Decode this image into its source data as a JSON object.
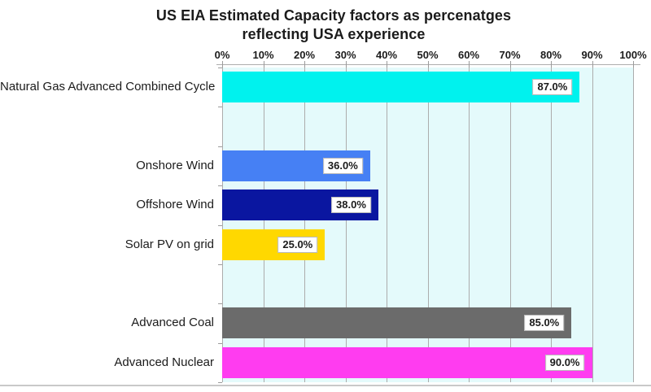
{
  "header": {
    "title_line1": "US EIA Estimated Capacity factors as percenatges",
    "title_line2": "reflecting USA experience"
  },
  "chart_data": {
    "type": "bar",
    "orientation": "horizontal",
    "title": "US EIA Estimated Capacity factors as percenatges reflecting USA experience",
    "xlabel": "",
    "ylabel": "",
    "x_axis": {
      "position": "top",
      "min": 0,
      "max": 100,
      "tick_step": 10,
      "tick_labels": [
        "0%",
        "10%",
        "20%",
        "30%",
        "40%",
        "50%",
        "60%",
        "70%",
        "80%",
        "90%",
        "100%"
      ]
    },
    "grid": "vertical",
    "legend": "none",
    "plot_background": "#e4fafb",
    "gridline_color": "#acacac",
    "rows": [
      {
        "category": "Natural Gas Advanced Combined Cycle",
        "value": 87.0,
        "data_label": "87.0%",
        "color": "#00f2ee"
      },
      {
        "category": "",
        "value": null,
        "data_label": "",
        "color": null
      },
      {
        "category": "Onshore Wind",
        "value": 36.0,
        "data_label": "36.0%",
        "color": "#4680f4"
      },
      {
        "category": "Offshore Wind",
        "value": 38.0,
        "data_label": "38.0%",
        "color": "#0a16a0"
      },
      {
        "category": "Solar PV on grid",
        "value": 25.0,
        "data_label": "25.0%",
        "color": "#ffd800"
      },
      {
        "category": "",
        "value": null,
        "data_label": "",
        "color": null
      },
      {
        "category": "Advanced Coal",
        "value": 85.0,
        "data_label": "85.0%",
        "color": "#6b6b6b"
      },
      {
        "category": "Advanced Nuclear",
        "value": 90.0,
        "data_label": "90.0%",
        "color": "#ff3cf0"
      }
    ]
  }
}
